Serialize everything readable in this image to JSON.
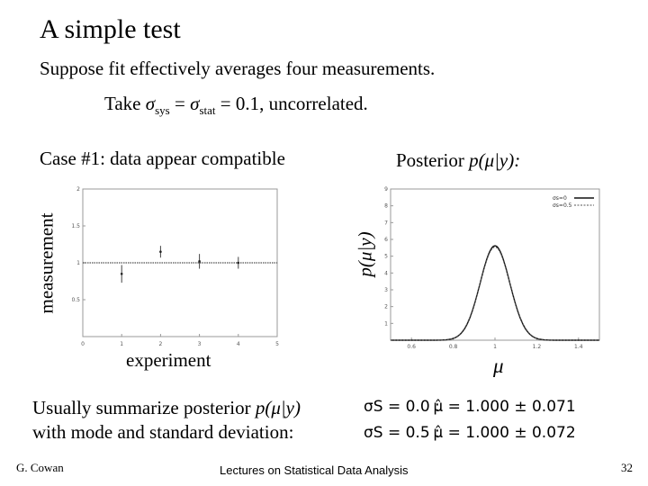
{
  "slide": {
    "title": "A simple test",
    "line1": "Suppose fit effectively averages four measurements.",
    "line2_prefix": "Take ",
    "sigma": "σ",
    "sys_sub": "sys",
    "equals": " = ",
    "stat_sub": "stat",
    "line2_suffix": " = 0.1, uncorrelated.",
    "case_label": "Case #1: data appear compatible",
    "posterior_prefix": "Posterior ",
    "posterior_func": "p(μ|y):",
    "summary_line1_prefix": "Usually summarize posterior ",
    "summary_line1_func": "p(μ|y)",
    "summary_line2": "with mode and standard deviation:",
    "eq1_sigma": "σS = 0.0 :",
    "eq1_est": "μ̂ = 1.000 ± 0.071",
    "eq2_sigma": "σS = 0.5 :",
    "eq2_est": "μ̂ = 1.000 ± 0.072"
  },
  "footer": {
    "left": "G. Cowan",
    "center": "Lectures on Statistical Data Analysis",
    "right": "32"
  },
  "chart_data": [
    {
      "type": "scatter",
      "title": "",
      "xlabel": "experiment",
      "ylabel": "measurement",
      "xlim": [
        0,
        5
      ],
      "ylim": [
        0,
        2
      ],
      "x_ticks": [
        "0",
        "1",
        "2",
        "3",
        "4",
        "5"
      ],
      "y_ticks": [
        "0.5",
        "1",
        "1.5",
        "2"
      ],
      "grid": false,
      "points": [
        {
          "x": 1,
          "y": 0.85,
          "err": 0.12
        },
        {
          "x": 2,
          "y": 1.15,
          "err": 0.08
        },
        {
          "x": 3,
          "y": 1.02,
          "err": 0.1
        },
        {
          "x": 4,
          "y": 1.0,
          "err": 0.08
        }
      ],
      "reference_line": 1.0
    },
    {
      "type": "line",
      "title": "",
      "xlabel": "μ",
      "ylabel": "p(μ|y)",
      "xlim": [
        0.5,
        1.5
      ],
      "ylim": [
        0,
        9
      ],
      "x_ticks": [
        "0.6",
        "0.8",
        "1",
        "1.2",
        "1.4"
      ],
      "y_ticks": [
        "1",
        "2",
        "3",
        "4",
        "5",
        "6",
        "7",
        "8",
        "9"
      ],
      "grid": false,
      "legend": {
        "placement": "top-right",
        "entries": [
          "σs=0",
          "σs=0.5"
        ]
      },
      "series": [
        {
          "name": "σs=0",
          "mean": 1.0,
          "sd": 0.071
        },
        {
          "name": "σs=0.5",
          "mean": 1.0,
          "sd": 0.072
        }
      ]
    }
  ]
}
